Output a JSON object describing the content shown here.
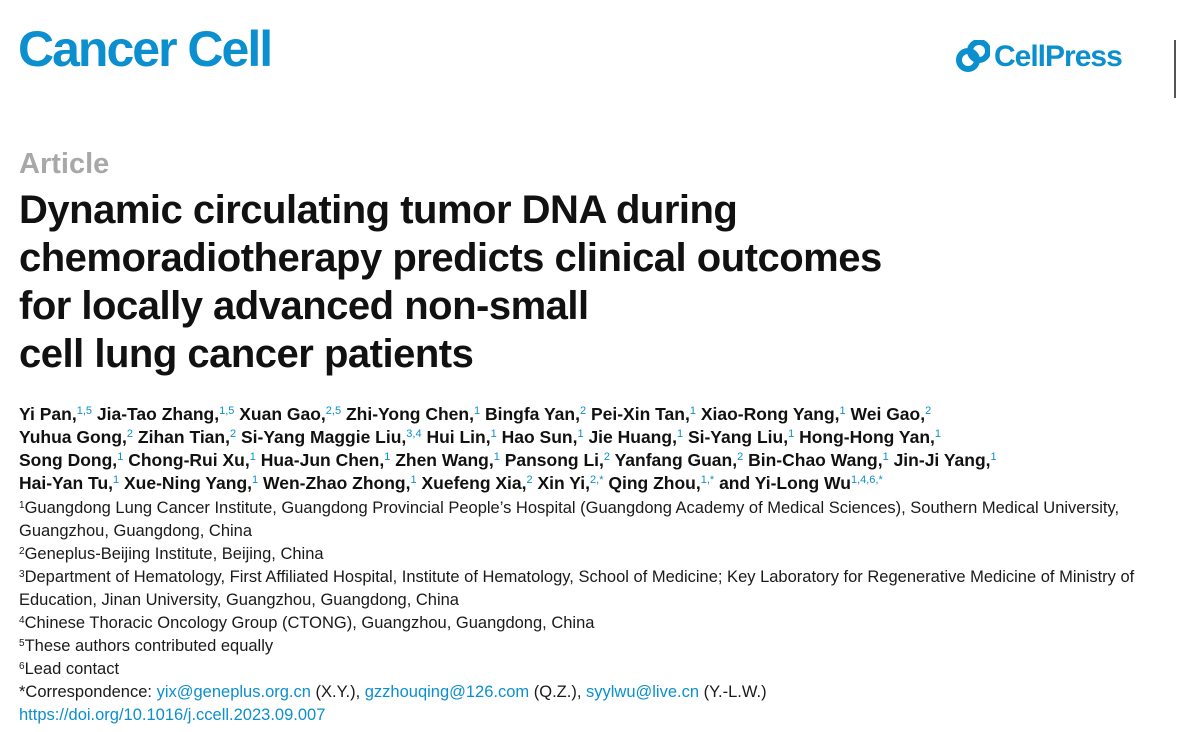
{
  "header": {
    "journal": "Cancer Cell",
    "publisher": "CellPress",
    "publisher_icon": "cellpress-logo-icon"
  },
  "article_type": "Article",
  "title_lines": [
    "Dynamic circulating tumor DNA during",
    "chemoradiotherapy predicts clinical outcomes",
    "for locally advanced non-small",
    "cell lung cancer patients"
  ],
  "author_lines": [
    [
      {
        "name": "Yi Pan,",
        "sup": "1,5"
      },
      {
        "name": "Jia-Tao Zhang,",
        "sup": "1,5"
      },
      {
        "name": "Xuan Gao,",
        "sup": "2,5"
      },
      {
        "name": "Zhi-Yong Chen,",
        "sup": "1"
      },
      {
        "name": "Bingfa Yan,",
        "sup": "2"
      },
      {
        "name": "Pei-Xin Tan,",
        "sup": "1"
      },
      {
        "name": "Xiao-Rong Yang,",
        "sup": "1"
      },
      {
        "name": "Wei Gao,",
        "sup": "2"
      }
    ],
    [
      {
        "name": "Yuhua Gong,",
        "sup": "2"
      },
      {
        "name": "Zihan Tian,",
        "sup": "2"
      },
      {
        "name": "Si-Yang Maggie Liu,",
        "sup": "3,4"
      },
      {
        "name": "Hui Lin,",
        "sup": "1"
      },
      {
        "name": "Hao Sun,",
        "sup": "1"
      },
      {
        "name": "Jie Huang,",
        "sup": "1"
      },
      {
        "name": "Si-Yang Liu,",
        "sup": "1"
      },
      {
        "name": "Hong-Hong Yan,",
        "sup": "1"
      }
    ],
    [
      {
        "name": "Song Dong,",
        "sup": "1"
      },
      {
        "name": "Chong-Rui Xu,",
        "sup": "1"
      },
      {
        "name": "Hua-Jun Chen,",
        "sup": "1"
      },
      {
        "name": "Zhen Wang,",
        "sup": "1"
      },
      {
        "name": "Pansong Li,",
        "sup": "2"
      },
      {
        "name": "Yanfang Guan,",
        "sup": "2"
      },
      {
        "name": "Bin-Chao Wang,",
        "sup": "1"
      },
      {
        "name": "Jin-Ji Yang,",
        "sup": "1"
      }
    ],
    [
      {
        "name": "Hai-Yan Tu,",
        "sup": "1"
      },
      {
        "name": "Xue-Ning Yang,",
        "sup": "1"
      },
      {
        "name": "Wen-Zhao Zhong,",
        "sup": "1"
      },
      {
        "name": "Xuefeng Xia,",
        "sup": "2"
      },
      {
        "name": "Xin Yi,",
        "sup": "2,*"
      },
      {
        "name": "Qing Zhou,",
        "sup": "1,*"
      },
      {
        "name": "and Yi-Long Wu",
        "sup": "1,4,6,*"
      }
    ]
  ],
  "affiliations": [
    {
      "sup": "1",
      "text": "Guangdong Lung Cancer Institute, Guangdong Provincial People’s Hospital (Guangdong Academy of Medical Sciences), Southern Medical University, Guangzhou, Guangdong, China"
    },
    {
      "sup": "2",
      "text": "Geneplus-Beijing Institute, Beijing, China"
    },
    {
      "sup": "3",
      "text": "Department of Hematology, First Affiliated Hospital, Institute of Hematology, School of Medicine; Key Laboratory for Regenerative Medicine of Ministry of Education, Jinan University, Guangzhou, Guangdong, China"
    },
    {
      "sup": "4",
      "text": "Chinese Thoracic Oncology Group (CTONG), Guangzhou, Guangdong, China"
    },
    {
      "sup": "5",
      "text": "These authors contributed equally"
    },
    {
      "sup": "6",
      "text": "Lead contact"
    }
  ],
  "correspondence": {
    "prefix": "*Correspondence: ",
    "entries": [
      {
        "email": "yix@geneplus.org.cn",
        "initials": " (X.Y.), "
      },
      {
        "email": "gzzhouqing@126.com",
        "initials": " (Q.Z.), "
      },
      {
        "email": "syylwu@live.cn",
        "initials": " (Y.-L.W.)"
      }
    ]
  },
  "doi": "https://doi.org/10.1016/j.ccell.2023.09.007",
  "colors": {
    "brand": "#0c8fcf",
    "article_type": "#a8a8a8"
  }
}
